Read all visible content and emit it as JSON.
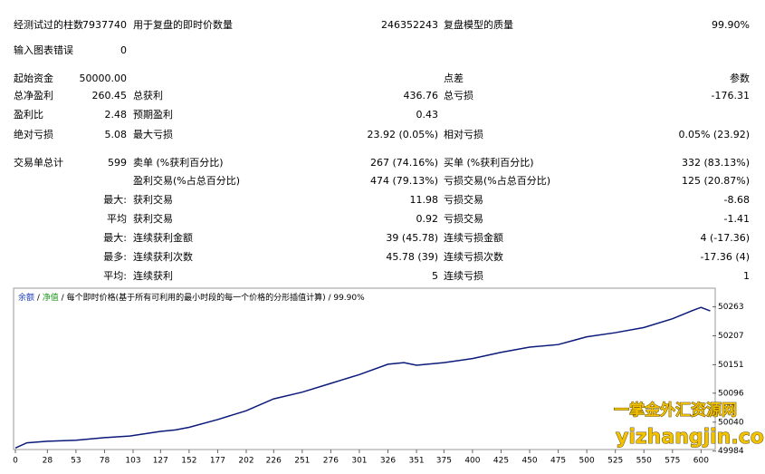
{
  "report": {
    "rows": [
      {
        "l1": "经测试过的柱数",
        "v1": "7937740",
        "l2": "用于复盘的即时价数量",
        "v2": "246352243",
        "l3": "复盘模型的质量",
        "v3": "99.90%"
      },
      {
        "l1": "输入图表错误",
        "v1": "0"
      },
      {
        "l1": "起始资金",
        "v1": "50000.00",
        "l3": "点差",
        "v3": "参数"
      },
      {
        "l1": "总净盈利",
        "v1": "260.45",
        "l2": "总获利",
        "v2": "436.76",
        "l3": "总亏损",
        "v3": "-176.31"
      },
      {
        "l1": "盈利比",
        "v1": "2.48",
        "l2": "预期盈利",
        "v2": "0.43"
      },
      {
        "l1": "绝对亏损",
        "v1": "5.08",
        "l2": "最大亏损",
        "v2": "23.92 (0.05%)",
        "l3": "相对亏损",
        "v3": "0.05% (23.92)"
      },
      {
        "l1": "交易单总计",
        "v1": "599",
        "l2": "卖单 (%获利百分比)",
        "v2": "267 (74.16%)",
        "l3": "买单 (%获利百分比)",
        "v3": "332 (83.13%)"
      },
      {
        "l2": "盈利交易(%占总百分比)",
        "v2": "474 (79.13%)",
        "l3": "亏损交易(%占总百分比)",
        "v3": "125 (20.87%)"
      },
      {
        "v1": "最大:",
        "l2": "获利交易",
        "v2": "11.98",
        "l3": "亏损交易",
        "v3": "-8.68"
      },
      {
        "v1": "平均",
        "l2": "获利交易",
        "v2": "0.92",
        "l3": "亏损交易",
        "v3": "-1.41"
      },
      {
        "v1": "最大:",
        "l2": "连续获利金额",
        "v2": "39 (45.78)",
        "l3": "连续亏损金额",
        "v3": "4 (-17.36)"
      },
      {
        "v1": "最多:",
        "l2": "连续获利次数",
        "v2": "45.78 (39)",
        "l3": "连续亏损次数",
        "v3": "-17.36 (4)"
      },
      {
        "v1": "平均:",
        "l2": "连续获利",
        "v2": "5",
        "l3": "连续亏损",
        "v3": "1"
      }
    ]
  },
  "chart_data": {
    "type": "line",
    "legend": [
      "余额",
      "净值"
    ],
    "caption": "每个即时价格(基于所有可利用的最小时段的每一个价格的分形插值计算)",
    "quality": "99.90%",
    "x": [
      0,
      10,
      28,
      53,
      78,
      100,
      127,
      140,
      152,
      177,
      202,
      226,
      251,
      276,
      301,
      326,
      340,
      351,
      375,
      400,
      425,
      450,
      475,
      500,
      525,
      550,
      575,
      595,
      600,
      608
    ],
    "series": [
      {
        "name": "余额",
        "color": "#0b1a7a",
        "values": [
          49990,
          50000,
          50003,
          50005,
          50010,
          50013,
          50022,
          50025,
          50030,
          50045,
          50062,
          50085,
          50098,
          50115,
          50132,
          50152,
          50155,
          50150,
          50155,
          50163,
          50175,
          50185,
          50190,
          50205,
          50213,
          50223,
          50240,
          50258,
          50262,
          50255
        ]
      }
    ],
    "xlim": [
      0,
      610
    ],
    "xticks": [
      0,
      28,
      53,
      78,
      103,
      127,
      152,
      177,
      202,
      226,
      251,
      276,
      301,
      326,
      351,
      375,
      400,
      425,
      450,
      475,
      500,
      525,
      550,
      575,
      600
    ],
    "ylim": [
      49980,
      50292
    ],
    "yticks": [
      49984,
      50040,
      50096,
      50151,
      50207,
      50263
    ],
    "legend_colors": [
      "#1f3fbf",
      "#1a9a1a"
    ]
  },
  "watermark": {
    "cn": "一掌金外汇资源网",
    "url": "yizhangjin.com"
  }
}
